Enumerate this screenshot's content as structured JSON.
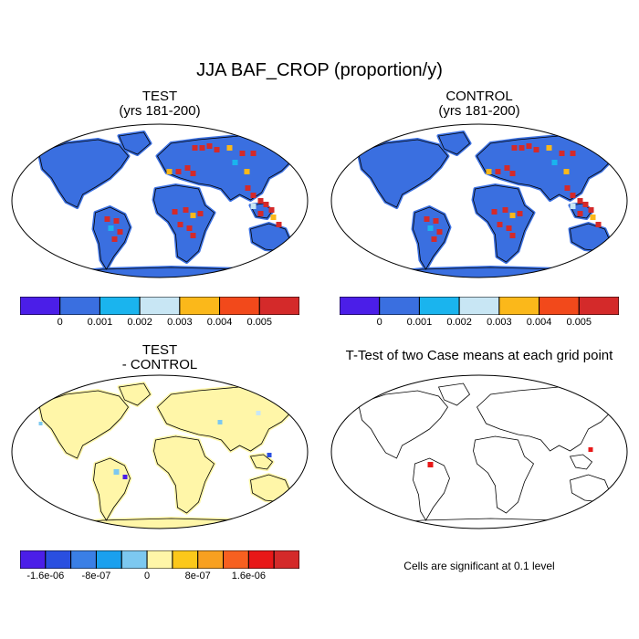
{
  "title": "JJA BAF_CROP (proportion/y)",
  "panels": [
    {
      "id": "test",
      "title_line1": "TEST",
      "title_line2": "(yrs 181-200)"
    },
    {
      "id": "control",
      "title_line1": "CONTROL",
      "title_line2": "(yrs 181-200)"
    },
    {
      "id": "diff",
      "title_line1": "TEST",
      "title_line2": "- CONTROL"
    },
    {
      "id": "ttest",
      "title_line1": "T-Test of two Case means at each grid point",
      "title_line2": ""
    }
  ],
  "colorbar_abs": {
    "colors": [
      "#4b1ee8",
      "#3a6fe0",
      "#1ab4ee",
      "#c8e6f4",
      "#fbb81a",
      "#f2491b",
      "#d42a2a"
    ],
    "labels": [
      "0",
      "0.001",
      "0.002",
      "0.003",
      "0.004",
      "0.005"
    ]
  },
  "colorbar_diff": {
    "colors": [
      "#4b1ee8",
      "#2a4fe0",
      "#3a7fe6",
      "#1aa0ee",
      "#7cc8f0",
      "#fff6a8",
      "#fbc81a",
      "#f8a020",
      "#f76020",
      "#e81818",
      "#d42a2a"
    ],
    "labels": [
      "-1.6e-06",
      "-8e-07",
      "0",
      "8e-07",
      "1.6e-06"
    ]
  },
  "note": "Cells are significant at 0.1 level",
  "colors": {
    "land_abs": "#3a6fe0",
    "land_diff": "#fff6a8",
    "hot": "#d42a2a",
    "warm": "#fbb81a",
    "light": "#c8e6f4",
    "cyan": "#1ab4ee"
  }
}
